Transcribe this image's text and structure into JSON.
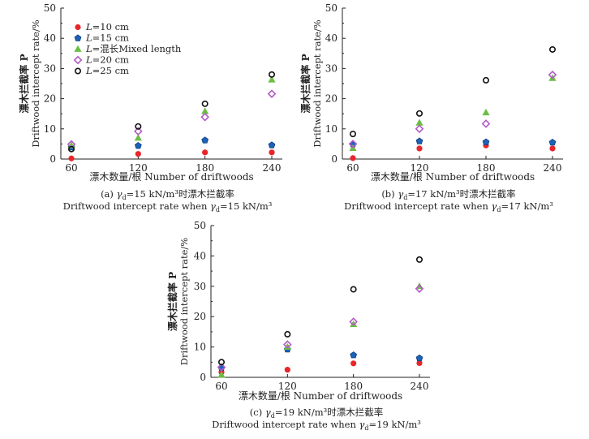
{
  "legend": [
    {
      "italic": "L",
      "text": "=10 cm",
      "marker": "circle-filled",
      "color": "#e8262a"
    },
    {
      "italic": "L",
      "text": "=15 cm",
      "marker": "pentagon",
      "color": "#1c63b8"
    },
    {
      "italic": "L",
      "text": "=混长Mixed length",
      "marker": "triangle",
      "color": "#6cbd45"
    },
    {
      "italic": "L",
      "text": "=20 cm",
      "marker": "diamond",
      "color": "#b45ac8"
    },
    {
      "italic": "L",
      "text": "=25 cm",
      "marker": "circle-open",
      "color": "#111111"
    }
  ],
  "chart_data": [
    {
      "type": "scatter",
      "panel": "a",
      "caption_line1_prefix": "(a) ",
      "caption_line1_gamma": "γ",
      "caption_line1_sub": "d",
      "caption_line1_rest": "=15 kN/m³时漂木拦截率",
      "caption_line2_prefix": "Driftwood intercept rate when ",
      "caption_line2_gamma": "γ",
      "caption_line2_sub": "d",
      "caption_line2_rest": "=15 kN/m³",
      "xlabel": "漂木数量/根 Number of driftwoods",
      "ylabel_cn": "漂木拦截率 P",
      "ylabel_en": "Driftwood intercept rate/%",
      "categories": [
        60,
        120,
        180,
        240
      ],
      "yticks": [
        0,
        10,
        20,
        30,
        40,
        50
      ],
      "ylim": [
        0,
        50
      ],
      "series": [
        {
          "name": "L=10 cm",
          "values": [
            0.2,
            1.7,
            2.2,
            2.2
          ]
        },
        {
          "name": "L=15 cm",
          "values": [
            3.9,
            4.4,
            6.2,
            4.6
          ]
        },
        {
          "name": "L=混长Mixed length",
          "values": [
            4.5,
            7.0,
            15.8,
            26.3
          ]
        },
        {
          "name": "L=20 cm",
          "values": [
            4.9,
            9.2,
            13.9,
            21.6
          ]
        },
        {
          "name": "L=25 cm",
          "values": [
            3.3,
            10.8,
            18.3,
            28.0
          ]
        }
      ]
    },
    {
      "type": "scatter",
      "panel": "b",
      "caption_line1_prefix": "(b) ",
      "caption_line1_gamma": "γ",
      "caption_line1_sub": "d",
      "caption_line1_rest": "=17 kN/m³时漂木拦截率",
      "caption_line2_prefix": "Driftwood intercept rate when ",
      "caption_line2_gamma": "γ",
      "caption_line2_sub": "d",
      "caption_line2_rest": "=17 kN/m³",
      "xlabel": "漂木数量/根 Number of driftwoods",
      "ylabel_cn": "漂木拦截率 P",
      "ylabel_en": "Driftwood intercept rate/%",
      "categories": [
        60,
        120,
        180,
        240
      ],
      "yticks": [
        0,
        10,
        20,
        30,
        40,
        50
      ],
      "ylim": [
        0,
        50
      ],
      "series": [
        {
          "name": "L=10 cm",
          "values": [
            0.3,
            3.5,
            4.5,
            3.5
          ]
        },
        {
          "name": "L=15 cm",
          "values": [
            4.9,
            5.9,
            5.6,
            5.5
          ]
        },
        {
          "name": "L=混长Mixed length",
          "values": [
            3.6,
            12.0,
            15.4,
            26.8
          ]
        },
        {
          "name": "L=20 cm",
          "values": [
            5.0,
            10.0,
            11.7,
            27.9
          ]
        },
        {
          "name": "L=25 cm",
          "values": [
            8.3,
            15.1,
            26.1,
            36.3
          ]
        }
      ]
    },
    {
      "type": "scatter",
      "panel": "c",
      "caption_line1_prefix": "(c) ",
      "caption_line1_gamma": "γ",
      "caption_line1_sub": "d",
      "caption_line1_rest": "=19 kN/m³时漂木拦截率",
      "caption_line2_prefix": "Driftwood intercept rate when ",
      "caption_line2_gamma": "γ",
      "caption_line2_sub": "d",
      "caption_line2_rest": "=19 kN/m³",
      "xlabel": "漂木数量/根 Number of driftwoods",
      "ylabel_cn": "漂木拦截率 P",
      "ylabel_en": "Driftwood intercept rate/%",
      "categories": [
        60,
        120,
        180,
        240
      ],
      "yticks": [
        0,
        10,
        20,
        30,
        40,
        50
      ],
      "ylim": [
        0,
        50
      ],
      "series": [
        {
          "name": "L=10 cm",
          "values": [
            1.7,
            2.5,
            4.6,
            4.7
          ]
        },
        {
          "name": "L=15 cm",
          "values": [
            3.1,
            9.2,
            7.3,
            6.3
          ]
        },
        {
          "name": "L=混长Mixed length",
          "values": [
            0.8,
            10.0,
            17.5,
            30.0
          ]
        },
        {
          "name": "L=20 cm",
          "values": [
            3.3,
            10.8,
            18.3,
            29.2
          ]
        },
        {
          "name": "L=25 cm",
          "values": [
            5.0,
            14.2,
            29.0,
            38.8
          ]
        }
      ]
    }
  ]
}
